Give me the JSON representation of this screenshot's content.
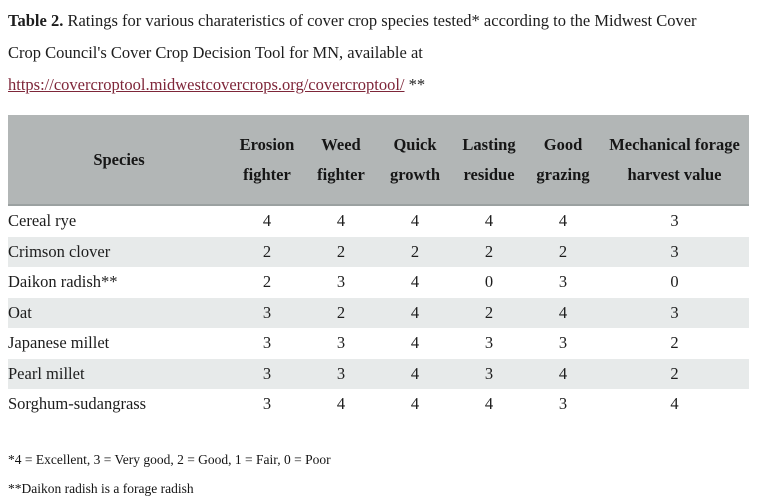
{
  "caption": {
    "label": "Table 2.",
    "text": " Ratings for various charateristics of cover crop species tested* according to the Midwest Cover Crop Council's Cover Crop Decision Tool for MN, available at ",
    "link_text": "https://covercroptool.midwestcovercrops.org/covercroptool/",
    "suffix": " **"
  },
  "table": {
    "columns": [
      "Species",
      "Erosion fighter",
      "Weed fighter",
      "Quick growth",
      "Lasting residue",
      "Good grazing",
      "Mechanical forage harvest value"
    ],
    "rows": [
      {
        "species": "Cereal rye",
        "values": [
          4,
          4,
          4,
          4,
          4,
          3
        ]
      },
      {
        "species": "Crimson clover",
        "values": [
          2,
          2,
          2,
          2,
          2,
          3
        ]
      },
      {
        "species": "Daikon radish**",
        "values": [
          2,
          3,
          4,
          0,
          3,
          0
        ]
      },
      {
        "species": "Oat",
        "values": [
          3,
          2,
          4,
          2,
          4,
          3
        ]
      },
      {
        "species": "Japanese millet",
        "values": [
          3,
          3,
          4,
          3,
          3,
          2
        ]
      },
      {
        "species": "Pearl millet",
        "values": [
          3,
          3,
          4,
          3,
          4,
          2
        ]
      },
      {
        "species": "Sorghum-sudangrass",
        "values": [
          3,
          4,
          4,
          4,
          3,
          4
        ]
      }
    ]
  },
  "footnotes": [
    "*4 = Excellent, 3 = Very good, 2 = Good, 1 = Fair, 0 = Poor",
    "**Daikon radish is a forage radish"
  ],
  "colors": {
    "header_bg": "#b2b6b6",
    "header_border": "#9ba1a1",
    "row_alt_bg": "#e7eaea",
    "link": "#7e2639",
    "text": "#1d1d1d"
  }
}
